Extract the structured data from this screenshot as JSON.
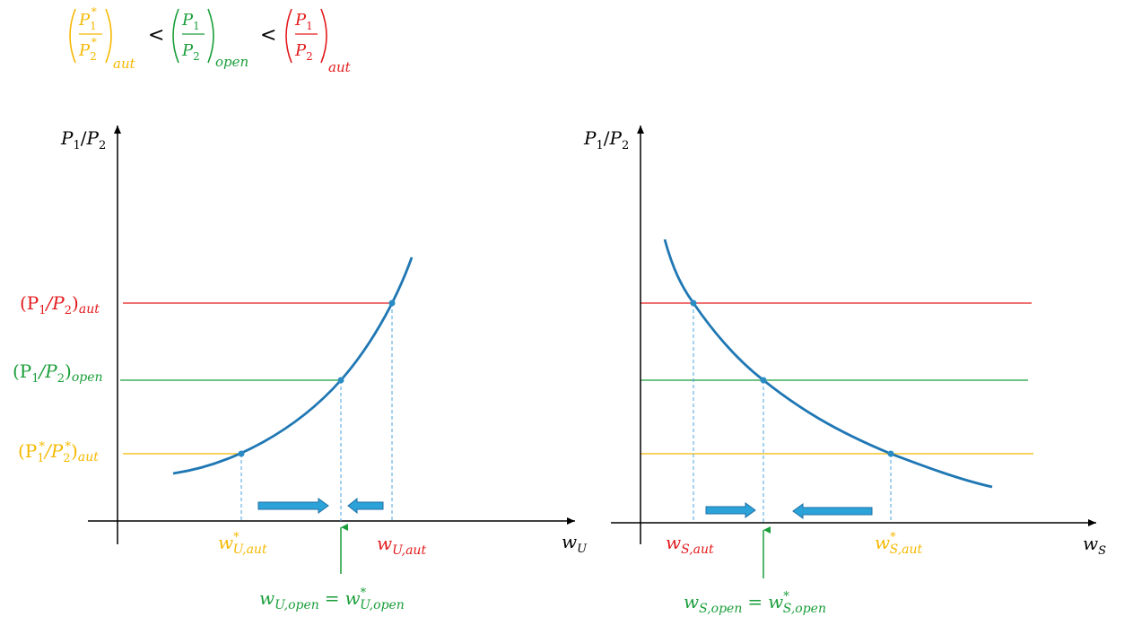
{
  "colors": {
    "autarky_foreign": "#f5b800",
    "open": "#1a9e3a",
    "autarky_home": "#e31a1c",
    "curve": "#1f77b4",
    "axis": "#000000",
    "dashed": "#4aa3df",
    "arrow_fill": "#2ba3d9",
    "arrow_stroke": "#1f6fa5"
  },
  "header_inequality": {
    "term_foreign_num": "P",
    "term_foreign_num_sub": "1",
    "term_foreign_num_sup": "*",
    "term_foreign_den": "P",
    "term_foreign_den_sub": "2",
    "term_foreign_den_sup": "*",
    "term_foreign_outer_sub": "aut",
    "lt_1": "<",
    "term_open_num": "P",
    "term_open_num_sub": "1",
    "term_open_den": "P",
    "term_open_den_sub": "2",
    "term_open_outer_sub": "open",
    "lt_2": "<",
    "term_home_num": "P",
    "term_home_num_sub": "1",
    "term_home_den": "P",
    "term_home_den_sub": "2",
    "term_home_outer_sub": "aut"
  },
  "left_panel": {
    "y_axis": {
      "base": "P",
      "sub1": "1",
      "slash": "/",
      "base2": "P",
      "sub2": "2"
    },
    "x_axis": {
      "base": "w",
      "sub": "U"
    },
    "price_labels": {
      "aut": {
        "text": "(P",
        "sub1": "1",
        "mid": "/P",
        "sub2": "2",
        "close": ")",
        "outer_sub": "aut"
      },
      "open": {
        "text": "(P",
        "sub1": "1",
        "mid": "/P",
        "sub2": "2",
        "close": ")",
        "outer_sub": "open"
      },
      "foreign_aut": {
        "text": "(P",
        "sub1": "1",
        "sup1": "*",
        "mid": "/P",
        "sub2": "2",
        "sup2": "*",
        "close": ")",
        "outer_sub": "aut"
      }
    },
    "wage_labels": {
      "foreign_aut": {
        "base": "w",
        "sup": "*",
        "sub": "U,aut"
      },
      "home_aut": {
        "base": "w",
        "sub": "U,aut"
      },
      "open_lhs": {
        "base": "w",
        "sub": "U,open"
      },
      "eq": "=",
      "open_rhs": {
        "base": "w",
        "sup": "*",
        "sub": "U,open"
      }
    }
  },
  "right_panel": {
    "y_axis": {
      "base": "P",
      "sub1": "1",
      "slash": "/",
      "base2": "P",
      "sub2": "2"
    },
    "x_axis": {
      "base": "w",
      "sub": "S"
    },
    "wage_labels": {
      "home_aut": {
        "base": "w",
        "sub": "S,aut"
      },
      "foreign_aut": {
        "base": "w",
        "sup": "*",
        "sub": "S,aut"
      },
      "open_lhs": {
        "base": "w",
        "sub": "S,open"
      },
      "eq": "=",
      "open_rhs": {
        "base": "w",
        "sup": "*",
        "sub": "S,open"
      }
    }
  }
}
